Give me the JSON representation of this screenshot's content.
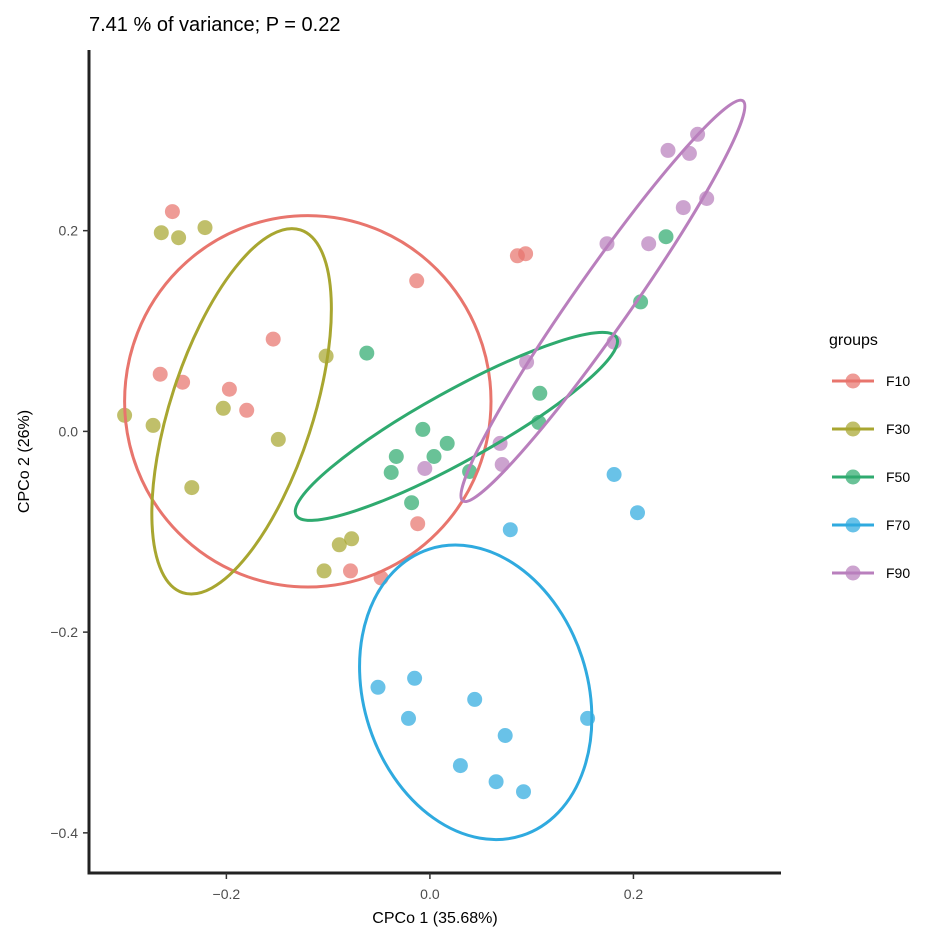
{
  "chart_data": {
    "type": "scatter",
    "subtitle": "7.41 % of variance; P = 0.22",
    "xlabel": "CPCo 1 (35.68%)",
    "ylabel": "CPCo 2 (26%)",
    "xlim": [
      -0.335,
      0.345
    ],
    "ylim": [
      -0.44,
      0.38
    ],
    "x_ticks": [
      -0.2,
      0.0,
      0.2
    ],
    "x_tick_labels": [
      "−0.2",
      "0.0",
      "0.2"
    ],
    "y_ticks": [
      -0.4,
      -0.2,
      0.0,
      0.2
    ],
    "y_tick_labels": [
      "−0.4",
      "−0.2",
      "0.0",
      "0.2"
    ],
    "grid": false,
    "legend": {
      "title": "groups",
      "position": "right",
      "entries": [
        "F10",
        "F30",
        "F50",
        "F70",
        "F90"
      ]
    },
    "series": [
      {
        "name": "F10",
        "color": "#E8756D",
        "points": [
          [
            -0.253,
            0.219
          ],
          [
            -0.265,
            0.057
          ],
          [
            -0.243,
            0.049
          ],
          [
            -0.197,
            0.042
          ],
          [
            -0.18,
            0.021
          ],
          [
            -0.154,
            0.092
          ],
          [
            -0.013,
            0.15
          ],
          [
            0.086,
            0.175
          ],
          [
            0.094,
            0.177
          ],
          [
            -0.012,
            -0.092
          ],
          [
            -0.078,
            -0.139
          ],
          [
            -0.048,
            -0.146
          ]
        ],
        "ellipse": {
          "center": [
            -0.12,
            0.03
          ],
          "rx": 0.18,
          "ry": 0.185,
          "angle_deg": 0
        }
      },
      {
        "name": "F30",
        "color": "#A8A630",
        "points": [
          [
            -0.264,
            0.198
          ],
          [
            -0.247,
            0.193
          ],
          [
            -0.221,
            0.203
          ],
          [
            -0.3,
            0.016
          ],
          [
            -0.272,
            0.006
          ],
          [
            -0.203,
            0.023
          ],
          [
            -0.149,
            -0.008
          ],
          [
            -0.102,
            0.075
          ],
          [
            -0.234,
            -0.056
          ],
          [
            -0.089,
            -0.113
          ],
          [
            -0.077,
            -0.107
          ],
          [
            -0.104,
            -0.139
          ]
        ],
        "ellipse": {
          "center": [
            -0.185,
            0.02
          ],
          "rx": 0.07,
          "ry": 0.19,
          "angle_deg": -18
        }
      },
      {
        "name": "F50",
        "color": "#2FAA6F",
        "points": [
          [
            -0.062,
            0.078
          ],
          [
            -0.007,
            0.002
          ],
          [
            0.017,
            -0.012
          ],
          [
            -0.038,
            -0.041
          ],
          [
            -0.033,
            -0.025
          ],
          [
            0.004,
            -0.025
          ],
          [
            -0.018,
            -0.071
          ],
          [
            0.039,
            -0.04
          ],
          [
            0.108,
            0.038
          ],
          [
            0.107,
            0.009
          ],
          [
            0.207,
            0.129
          ],
          [
            0.232,
            0.194
          ]
        ],
        "ellipse": {
          "center": [
            0.026,
            0.005
          ],
          "rx": 0.18,
          "ry": 0.035,
          "angle_deg": 29
        }
      },
      {
        "name": "F70",
        "color": "#2FAADF",
        "points": [
          [
            0.079,
            -0.098
          ],
          [
            0.181,
            -0.043
          ],
          [
            0.204,
            -0.081
          ],
          [
            -0.051,
            -0.255
          ],
          [
            -0.015,
            -0.246
          ],
          [
            -0.021,
            -0.286
          ],
          [
            0.044,
            -0.267
          ],
          [
            0.074,
            -0.303
          ],
          [
            0.03,
            -0.333
          ],
          [
            0.065,
            -0.349
          ],
          [
            0.092,
            -0.359
          ],
          [
            0.155,
            -0.286
          ]
        ],
        "ellipse": {
          "center": [
            0.045,
            -0.26
          ],
          "rx": 0.11,
          "ry": 0.15,
          "angle_deg": 18
        }
      },
      {
        "name": "F90",
        "color": "#B97FBD",
        "points": [
          [
            0.234,
            0.28
          ],
          [
            0.263,
            0.296
          ],
          [
            0.255,
            0.277
          ],
          [
            0.174,
            0.187
          ],
          [
            0.215,
            0.187
          ],
          [
            0.249,
            0.223
          ],
          [
            0.272,
            0.232
          ],
          [
            0.181,
            0.089
          ],
          [
            0.095,
            0.069
          ],
          [
            0.069,
            -0.012
          ],
          [
            0.071,
            -0.033
          ],
          [
            -0.005,
            -0.037
          ]
        ],
        "ellipse": {
          "center": [
            0.17,
            0.13
          ],
          "rx": 0.24,
          "ry": 0.028,
          "angle_deg": 55
        }
      }
    ]
  }
}
